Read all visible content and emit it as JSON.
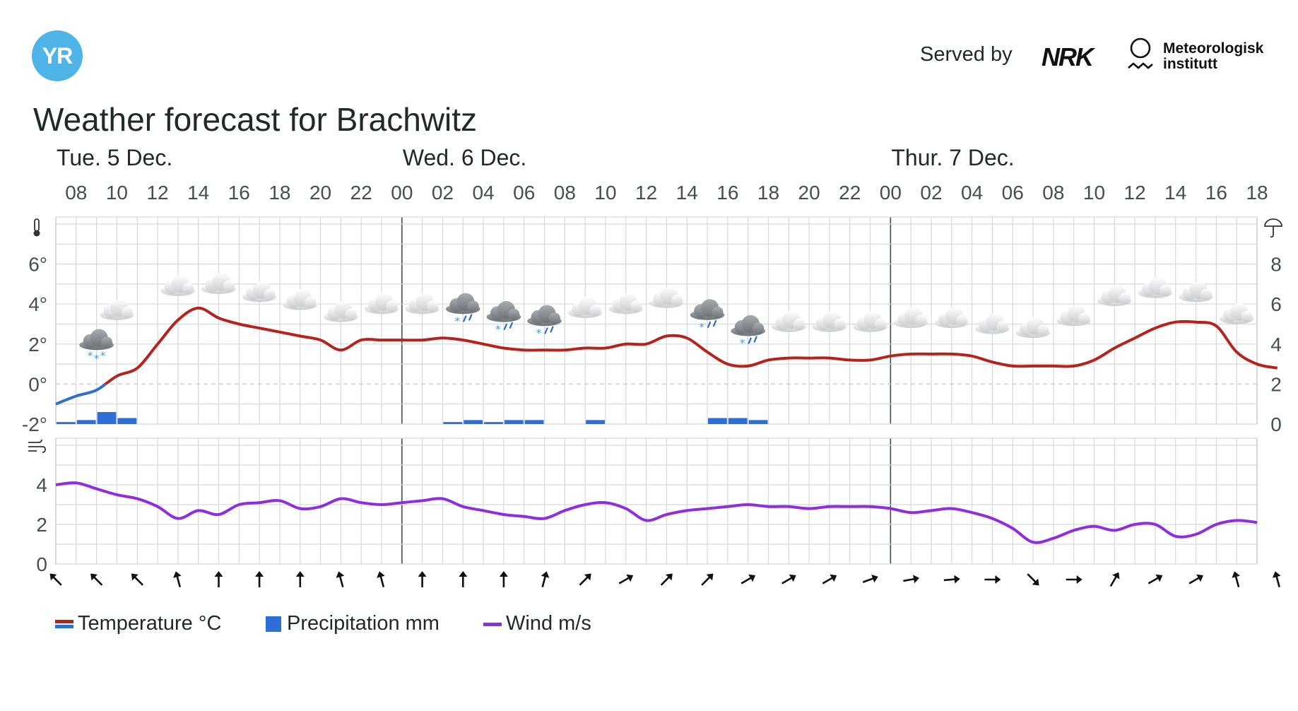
{
  "header": {
    "logo_text": "YR",
    "served_by": "Served by",
    "nrk_text": "NRK",
    "met_line1": "Meteorologisk",
    "met_line2": "institutt"
  },
  "title": "Weather forecast for Brachwitz",
  "chart_data": {
    "type": "line",
    "days": [
      {
        "label": "Tue. 5 Dec.",
        "start_hour": 7
      },
      {
        "label": "Wed. 6 Dec.",
        "start_hour": 24
      },
      {
        "label": "Thur. 7 Dec.",
        "start_hour": 48
      }
    ],
    "hour_range": [
      7,
      66
    ],
    "hour_tick_labels": [
      "08",
      "10",
      "12",
      "14",
      "16",
      "18",
      "20",
      "22",
      "00",
      "02",
      "04",
      "06",
      "08",
      "10",
      "12",
      "14",
      "16",
      "18",
      "20",
      "22",
      "00",
      "02",
      "04",
      "06",
      "08",
      "10",
      "12",
      "14",
      "16",
      "18"
    ],
    "temperature": {
      "name": "Temperature °C",
      "unit": "°",
      "ylim": [
        -2,
        8
      ],
      "yticks": [
        -2,
        0,
        2,
        4,
        6
      ],
      "cold_color": "#2f6fd0",
      "warm_color": "#b6231c",
      "values": [
        -1.0,
        -0.6,
        -0.3,
        0.4,
        0.8,
        2.0,
        3.2,
        3.8,
        3.3,
        3.0,
        2.8,
        2.6,
        2.4,
        2.2,
        1.7,
        2.2,
        2.2,
        2.2,
        2.2,
        2.3,
        2.2,
        2.0,
        1.8,
        1.7,
        1.7,
        1.7,
        1.8,
        1.8,
        2.0,
        2.0,
        2.4,
        2.3,
        1.6,
        1.0,
        0.9,
        1.2,
        1.3,
        1.3,
        1.3,
        1.2,
        1.2,
        1.4,
        1.5,
        1.5,
        1.5,
        1.4,
        1.1,
        0.9,
        0.9,
        0.9,
        0.9,
        1.2,
        1.8,
        2.3,
        2.8,
        3.1,
        3.1,
        2.9,
        1.6,
        1.0,
        0.8
      ]
    },
    "precipitation": {
      "name": "Precipitation mm",
      "color": "#2d6fd6",
      "ylim": [
        0,
        10
      ],
      "yticks": [
        0,
        2,
        4,
        6,
        8
      ],
      "values": [
        0.1,
        0.2,
        0.6,
        0.3,
        0,
        0,
        0,
        0,
        0,
        0,
        0,
        0,
        0,
        0,
        0,
        0,
        0,
        0,
        0,
        0.1,
        0.2,
        0.1,
        0.2,
        0.2,
        0,
        0,
        0.2,
        0,
        0,
        0,
        0,
        0,
        0.3,
        0.3,
        0.2,
        0,
        0,
        0,
        0,
        0,
        0,
        0,
        0,
        0,
        0,
        0,
        0,
        0,
        0,
        0,
        0,
        0,
        0,
        0,
        0,
        0,
        0,
        0,
        0,
        0
      ]
    },
    "wind": {
      "name": "Wind m/s",
      "color": "#8f2ee0",
      "ylim": [
        0,
        6
      ],
      "yticks": [
        0,
        2,
        4
      ],
      "values": [
        4.0,
        4.1,
        3.8,
        3.5,
        3.3,
        2.9,
        2.3,
        2.7,
        2.5,
        3.0,
        3.1,
        3.2,
        2.8,
        2.9,
        3.3,
        3.1,
        3.0,
        3.1,
        3.2,
        3.3,
        2.9,
        2.7,
        2.5,
        2.4,
        2.3,
        2.7,
        3.0,
        3.1,
        2.8,
        2.2,
        2.5,
        2.7,
        2.8,
        2.9,
        3.0,
        2.9,
        2.9,
        2.8,
        2.9,
        2.9,
        2.9,
        2.8,
        2.6,
        2.7,
        2.8,
        2.6,
        2.3,
        1.8,
        1.1,
        1.3,
        1.7,
        1.9,
        1.7,
        2.0,
        2.0,
        1.4,
        1.5,
        2.0,
        2.2,
        2.1
      ]
    },
    "weather_symbols": [
      {
        "hour": 9,
        "temp": 1.8,
        "type": "snow"
      },
      {
        "hour": 10,
        "temp": 3.3,
        "type": "cloudy"
      },
      {
        "hour": 13,
        "temp": 4.5,
        "type": "cloudy"
      },
      {
        "hour": 15,
        "temp": 4.6,
        "type": "cloudy"
      },
      {
        "hour": 17,
        "temp": 4.2,
        "type": "cloudy"
      },
      {
        "hour": 19,
        "temp": 3.8,
        "type": "cloudy"
      },
      {
        "hour": 21,
        "temp": 3.2,
        "type": "cloudy"
      },
      {
        "hour": 23,
        "temp": 3.6,
        "type": "cloudy"
      },
      {
        "hour": 25,
        "temp": 3.6,
        "type": "cloudy"
      },
      {
        "hour": 27,
        "temp": 3.6,
        "type": "sleet"
      },
      {
        "hour": 29,
        "temp": 3.2,
        "type": "sleet"
      },
      {
        "hour": 31,
        "temp": 3.0,
        "type": "sleet"
      },
      {
        "hour": 33,
        "temp": 3.4,
        "type": "cloudy"
      },
      {
        "hour": 35,
        "temp": 3.6,
        "type": "cloudy"
      },
      {
        "hour": 37,
        "temp": 3.9,
        "type": "cloudy"
      },
      {
        "hour": 39,
        "temp": 3.3,
        "type": "sleet"
      },
      {
        "hour": 41,
        "temp": 2.5,
        "type": "sleet"
      },
      {
        "hour": 43,
        "temp": 2.7,
        "type": "cloudy"
      },
      {
        "hour": 45,
        "temp": 2.7,
        "type": "cloudy"
      },
      {
        "hour": 47,
        "temp": 2.7,
        "type": "cloudy"
      },
      {
        "hour": 49,
        "temp": 2.9,
        "type": "cloudy"
      },
      {
        "hour": 51,
        "temp": 2.9,
        "type": "cloudy"
      },
      {
        "hour": 53,
        "temp": 2.6,
        "type": "cloudy"
      },
      {
        "hour": 55,
        "temp": 2.4,
        "type": "cloudy"
      },
      {
        "hour": 57,
        "temp": 3.0,
        "type": "cloudy"
      },
      {
        "hour": 59,
        "temp": 4.0,
        "type": "cloudy"
      },
      {
        "hour": 61,
        "temp": 4.4,
        "type": "cloudy"
      },
      {
        "hour": 63,
        "temp": 4.2,
        "type": "cloudy"
      },
      {
        "hour": 65,
        "temp": 3.1,
        "type": "cloudy"
      }
    ],
    "wind_arrows_deg": [
      315,
      315,
      315,
      345,
      0,
      0,
      0,
      345,
      345,
      0,
      0,
      0,
      15,
      45,
      60,
      45,
      45,
      60,
      60,
      60,
      70,
      80,
      85,
      90,
      135,
      90,
      30,
      60,
      60,
      345,
      345
    ],
    "grid": true
  },
  "legend": {
    "temperature": "Temperature °C",
    "precipitation": "Precipitation mm",
    "wind": "Wind m/s"
  }
}
